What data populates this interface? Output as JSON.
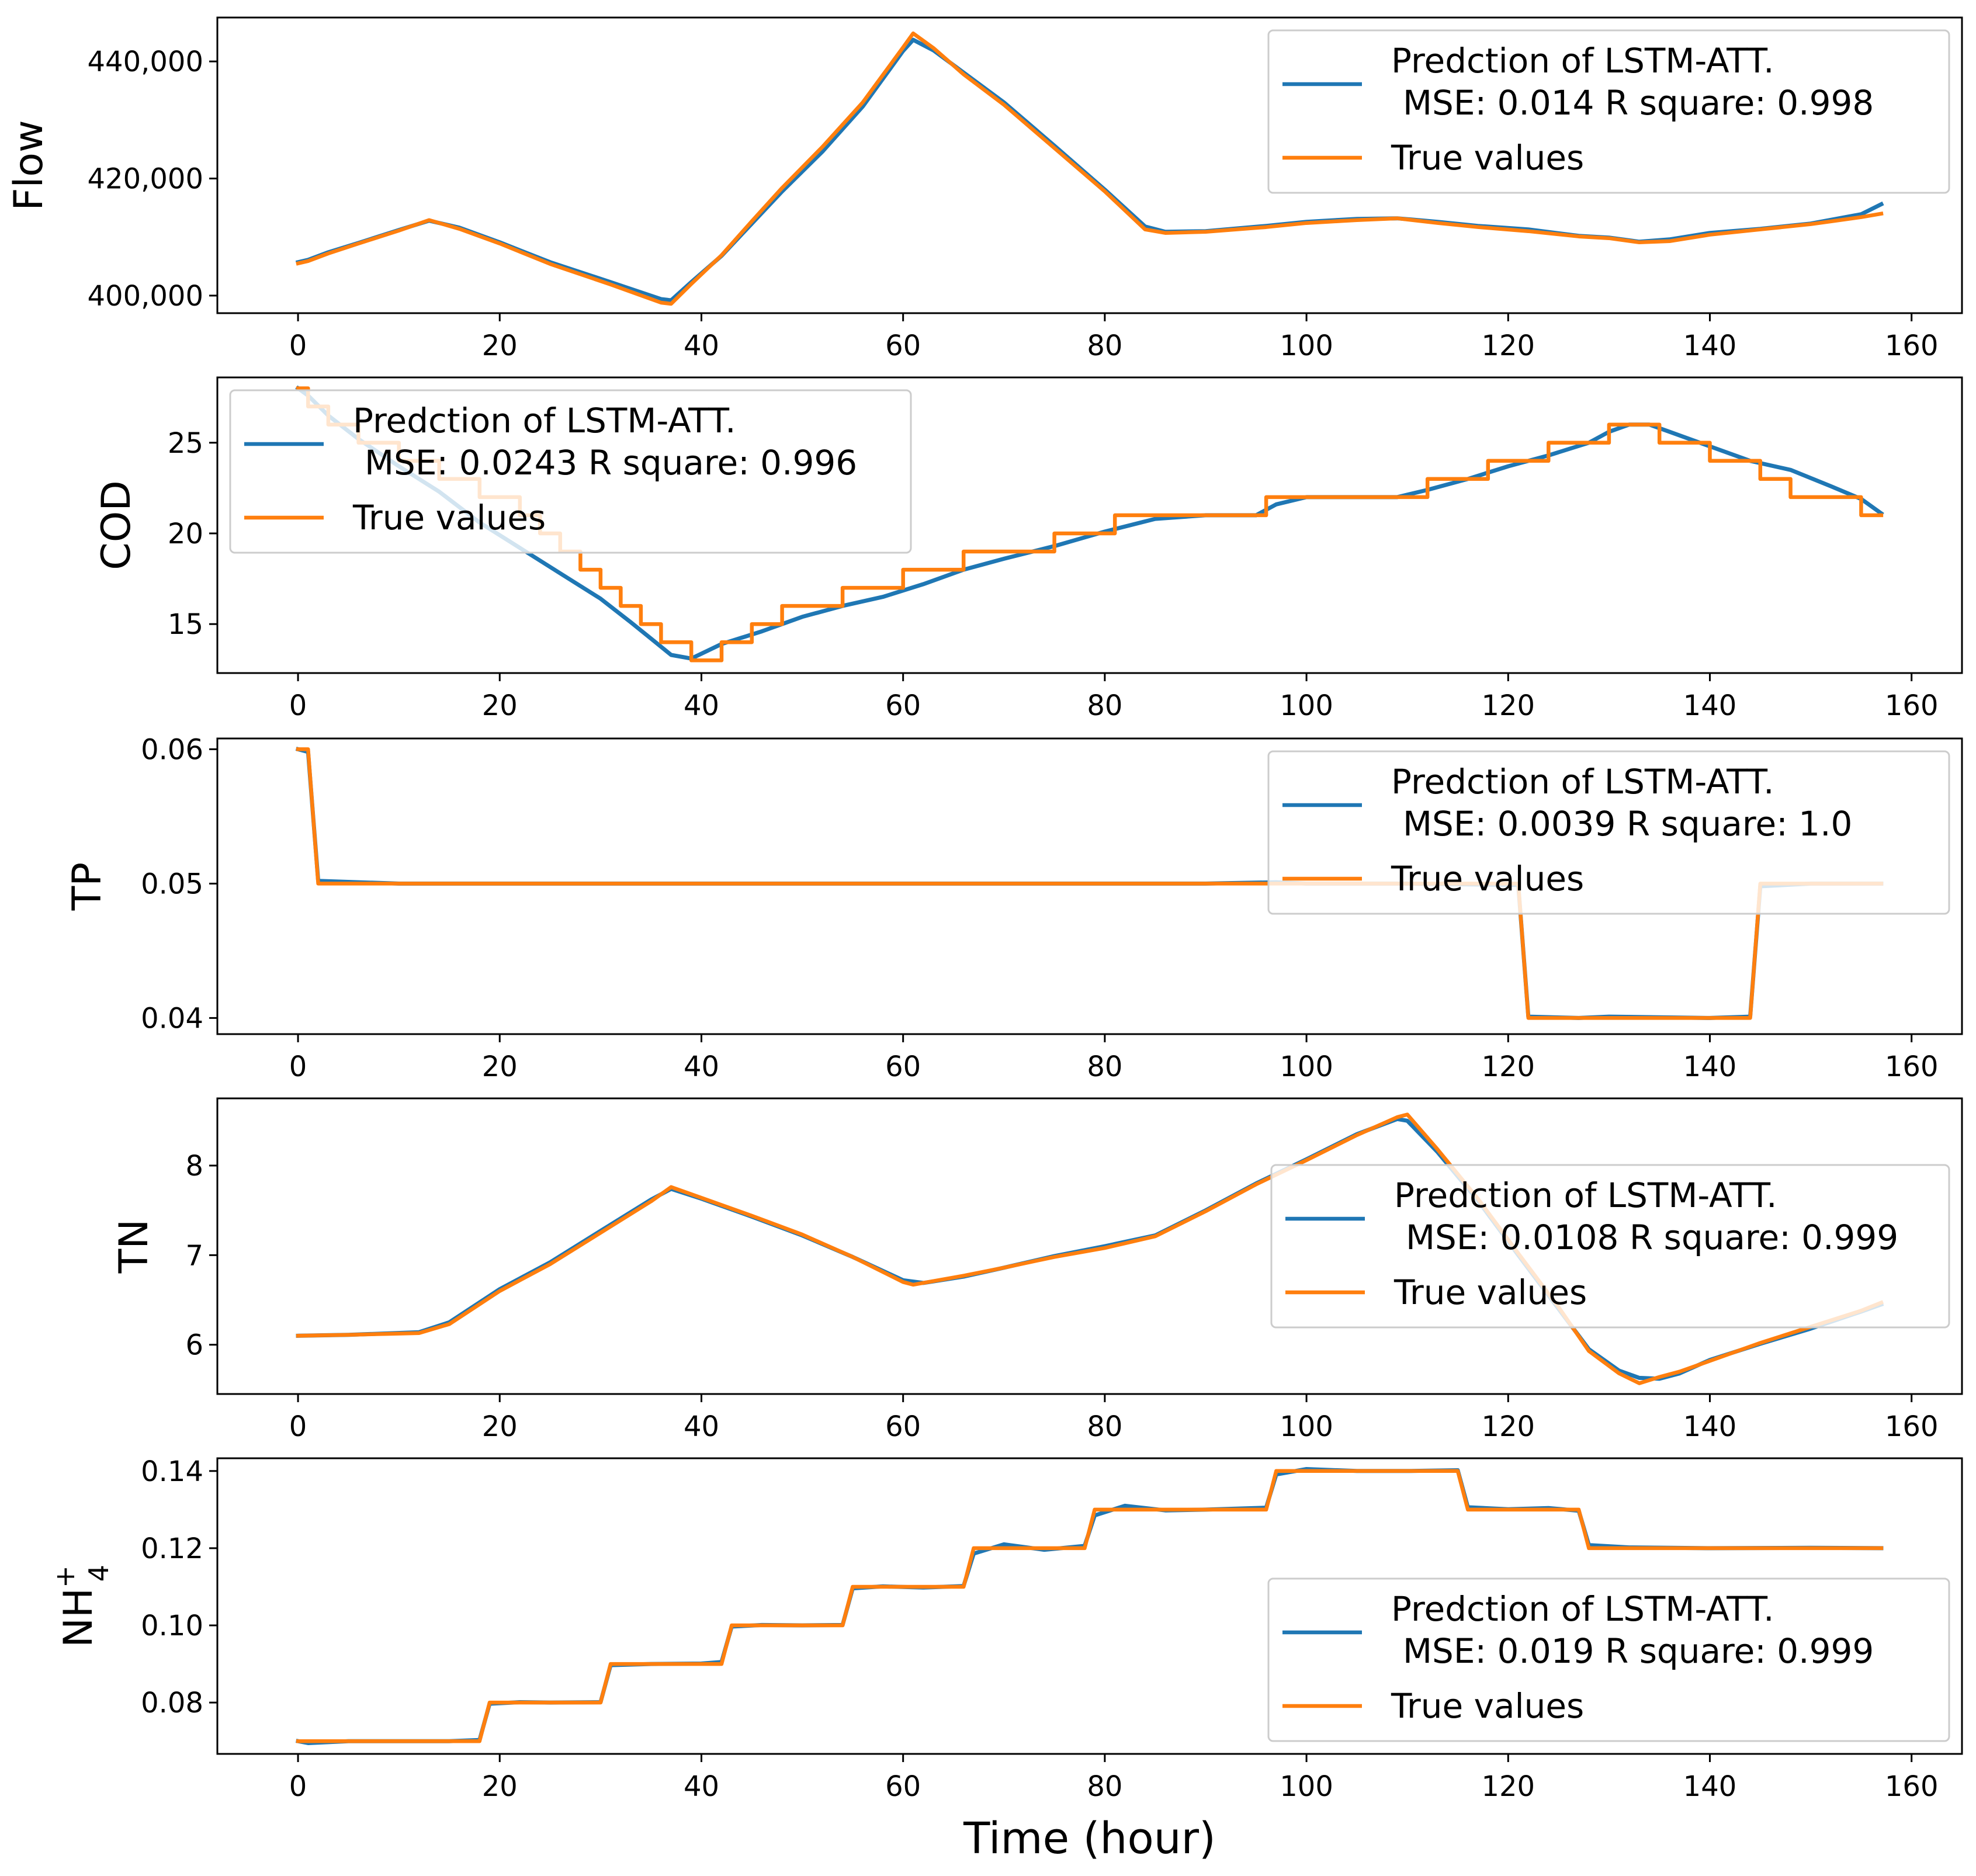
{
  "figure": {
    "xlabel": "Time (hour)"
  },
  "colors": {
    "prediction": "#1f77b4",
    "truth": "#ff7f0e"
  },
  "chart_data": [
    {
      "type": "line",
      "ylabel": "Flow",
      "xlim": [
        -8,
        165
      ],
      "ylim": [
        397000,
        447500
      ],
      "xticks": [
        0,
        20,
        40,
        60,
        80,
        100,
        120,
        140,
        160
      ],
      "xtick_labels": [
        "0",
        "20",
        "40",
        "60",
        "80",
        "100",
        "120",
        "140",
        "160"
      ],
      "yticks": [
        400000,
        420000,
        440000
      ],
      "ytick_labels": [
        "400,000",
        "420,000",
        "440,000"
      ],
      "legend": {
        "position": "upper-right",
        "prediction_line1": "Predction of LSTM-ATT.",
        "prediction_line2": "MSE: 0.014  R square: 0.998",
        "truth_label": "True values"
      },
      "series": [
        {
          "name": "Prediction",
          "x": [
            0,
            1,
            3,
            6,
            10,
            13,
            16,
            20,
            25,
            31,
            36,
            37,
            39,
            42,
            45,
            48,
            52,
            56,
            60,
            61,
            63,
            66,
            70,
            75,
            80,
            84,
            86,
            90,
            96,
            100,
            105,
            109,
            113,
            117,
            122,
            127,
            130,
            133,
            136,
            140,
            145,
            150,
            155,
            157
          ],
          "y": [
            405700,
            406100,
            407400,
            409000,
            411200,
            412800,
            411600,
            409100,
            405700,
            402300,
            399400,
            399200,
            402300,
            406800,
            412300,
            417800,
            424600,
            432300,
            441800,
            443700,
            441900,
            438100,
            433000,
            425600,
            418100,
            411800,
            410900,
            411000,
            411900,
            412600,
            413100,
            413200,
            412600,
            411900,
            411300,
            410200,
            409900,
            409200,
            409600,
            410700,
            411400,
            412300,
            413900,
            415600
          ]
        },
        {
          "name": "True values",
          "x": [
            0,
            1,
            3,
            6,
            10,
            13,
            16,
            20,
            25,
            31,
            36,
            37,
            39,
            42,
            45,
            48,
            52,
            56,
            60,
            61,
            63,
            66,
            70,
            75,
            80,
            84,
            86,
            90,
            96,
            100,
            105,
            109,
            113,
            117,
            122,
            127,
            130,
            133,
            136,
            140,
            145,
            150,
            155,
            157
          ],
          "y": [
            405500,
            405900,
            407200,
            408900,
            411100,
            412900,
            411400,
            408900,
            405400,
            401900,
            398800,
            398600,
            402000,
            406900,
            412700,
            418400,
            425400,
            433000,
            442400,
            444800,
            442300,
            437800,
            432600,
            425200,
            417800,
            411300,
            410700,
            410900,
            411700,
            412400,
            412900,
            413200,
            412400,
            411700,
            411000,
            410100,
            409800,
            409100,
            409300,
            410400,
            411300,
            412200,
            413400,
            414000
          ]
        }
      ]
    },
    {
      "type": "line",
      "ylabel": "COD",
      "xlim": [
        -8,
        165
      ],
      "ylim": [
        12.3,
        28.6
      ],
      "xticks": [
        0,
        20,
        40,
        60,
        80,
        100,
        120,
        140,
        160
      ],
      "xtick_labels": [
        "0",
        "20",
        "40",
        "60",
        "80",
        "100",
        "120",
        "140",
        "160"
      ],
      "yticks": [
        15,
        20,
        25
      ],
      "ytick_labels": [
        "15",
        "20",
        "25"
      ],
      "legend": {
        "position": "upper-left",
        "prediction_line1": "Predction of LSTM-ATT.",
        "prediction_line2": "MSE: 0.0243  R square: 0.996",
        "truth_label": "True values"
      },
      "series": [
        {
          "name": "Prediction",
          "x": [
            0,
            1,
            3,
            6,
            10,
            14,
            18,
            22,
            26,
            30,
            33,
            35,
            37,
            39,
            42,
            46,
            50,
            54,
            58,
            62,
            66,
            70,
            75,
            80,
            85,
            90,
            95,
            97,
            100,
            105,
            109,
            112,
            116,
            120,
            124,
            128,
            130,
            132,
            134,
            136,
            140,
            144,
            148,
            152,
            155,
            157
          ],
          "y": [
            28,
            27.6,
            26.5,
            25.2,
            23.7,
            22.3,
            20.6,
            19.2,
            17.8,
            16.4,
            15.1,
            14.2,
            13.3,
            13.1,
            13.9,
            14.6,
            15.4,
            16,
            16.5,
            17.2,
            18,
            18.6,
            19.3,
            20.1,
            20.8,
            21,
            21,
            21.6,
            22,
            22,
            22,
            22.4,
            23,
            23.7,
            24.3,
            25,
            25.6,
            26,
            26,
            25.6,
            24.8,
            24,
            23.5,
            22.6,
            21.9,
            21.1
          ]
        },
        {
          "name": "True values",
          "x": [
            0,
            1,
            1,
            3,
            3,
            6,
            6,
            10,
            10,
            14,
            14,
            18,
            18,
            22,
            22,
            24,
            24,
            26,
            26,
            28,
            28,
            30,
            30,
            32,
            32,
            34,
            34,
            36,
            36,
            39,
            39,
            42,
            42,
            45,
            45,
            48,
            48,
            51,
            51,
            54,
            54,
            57,
            57,
            60,
            60,
            63,
            63,
            66,
            66,
            69,
            69,
            72,
            72,
            75,
            75,
            78,
            78,
            81,
            81,
            96,
            96,
            109,
            109,
            112,
            112,
            115,
            115,
            118,
            118,
            121,
            121,
            124,
            124,
            127,
            127,
            130,
            130,
            135,
            135,
            137,
            137,
            140,
            140,
            145,
            145,
            148,
            148,
            152,
            152,
            155,
            155,
            157
          ],
          "y": [
            28,
            28,
            27,
            27,
            26,
            26,
            25,
            25,
            24,
            24,
            23,
            23,
            22,
            22,
            21,
            21,
            20,
            20,
            19,
            19,
            18,
            18,
            17,
            17,
            16,
            16,
            15,
            15,
            14,
            14,
            13,
            13,
            14,
            14,
            15,
            15,
            16,
            16,
            16,
            16,
            17,
            17,
            17,
            17,
            18,
            18,
            18,
            18,
            19,
            19,
            19,
            19,
            19,
            19,
            20,
            20,
            20,
            20,
            21,
            21,
            22,
            22,
            22,
            22,
            23,
            23,
            23,
            23,
            24,
            24,
            24,
            24,
            25,
            25,
            25,
            25,
            26,
            26,
            25,
            25,
            25,
            25,
            24,
            24,
            23,
            23,
            22,
            22,
            22,
            22,
            21,
            21
          ]
        }
      ]
    },
    {
      "type": "line",
      "ylabel": "TP",
      "xlim": [
        -8,
        165
      ],
      "ylim": [
        0.0388,
        0.0608
      ],
      "xticks": [
        0,
        20,
        40,
        60,
        80,
        100,
        120,
        140,
        160
      ],
      "xtick_labels": [
        "0",
        "20",
        "40",
        "60",
        "80",
        "100",
        "120",
        "140",
        "160"
      ],
      "yticks": [
        0.04,
        0.05,
        0.06
      ],
      "ytick_labels": [
        "0.04",
        "0.05",
        "0.06"
      ],
      "legend": {
        "position": "upper-right",
        "prediction_line1": "Predction of LSTM-ATT.",
        "prediction_line2": "MSE: 0.0039  R square: 1.0",
        "truth_label": "True values"
      },
      "series": [
        {
          "name": "Prediction",
          "x": [
            0,
            1,
            2,
            10,
            30,
            50,
            70,
            90,
            97,
            100,
            110,
            121,
            122,
            127,
            130,
            140,
            144,
            145,
            150,
            157
          ],
          "y": [
            0.06,
            0.0598,
            0.0502,
            0.05,
            0.05,
            0.05,
            0.05,
            0.05,
            0.0501,
            0.05,
            0.05,
            0.0499,
            0.0401,
            0.04,
            0.0401,
            0.04,
            0.0401,
            0.0498,
            0.05,
            0.05
          ]
        },
        {
          "name": "True values",
          "x": [
            0,
            1,
            2,
            121,
            122,
            144,
            145,
            157
          ],
          "y": [
            0.06,
            0.06,
            0.05,
            0.05,
            0.04,
            0.04,
            0.05,
            0.05
          ]
        }
      ]
    },
    {
      "type": "line",
      "ylabel": "TN",
      "xlim": [
        -8,
        165
      ],
      "ylim": [
        5.45,
        8.75
      ],
      "xticks": [
        0,
        20,
        40,
        60,
        80,
        100,
        120,
        140,
        160
      ],
      "xtick_labels": [
        "0",
        "20",
        "40",
        "60",
        "80",
        "100",
        "120",
        "140",
        "160"
      ],
      "yticks": [
        6,
        7,
        8
      ],
      "ytick_labels": [
        "6",
        "7",
        "8"
      ],
      "legend": {
        "position": "center-right",
        "prediction_line1": "Predction of LSTM-ATT.",
        "prediction_line2": "MSE: 0.0108  R square: 0.999",
        "truth_label": "True values"
      },
      "series": [
        {
          "name": "Prediction",
          "x": [
            0,
            5,
            12,
            15,
            20,
            25,
            30,
            35,
            37,
            40,
            45,
            50,
            55,
            60,
            62,
            66,
            70,
            75,
            80,
            85,
            90,
            95,
            100,
            105,
            109,
            110,
            113,
            117,
            121,
            125,
            128,
            131,
            133,
            135,
            137,
            140,
            145,
            150,
            155,
            157
          ],
          "y": [
            6.1,
            6.11,
            6.14,
            6.25,
            6.62,
            6.92,
            7.27,
            7.62,
            7.74,
            7.63,
            7.43,
            7.22,
            6.98,
            6.72,
            6.69,
            6.76,
            6.86,
            6.99,
            7.1,
            7.22,
            7.5,
            7.8,
            8.07,
            8.35,
            8.52,
            8.5,
            8.15,
            7.61,
            7,
            6.4,
            5.95,
            5.71,
            5.63,
            5.62,
            5.68,
            5.83,
            6.01,
            6.18,
            6.37,
            6.45
          ]
        },
        {
          "name": "True values",
          "x": [
            0,
            5,
            12,
            15,
            20,
            25,
            30,
            35,
            37,
            40,
            45,
            50,
            55,
            60,
            61,
            66,
            70,
            75,
            80,
            85,
            90,
            95,
            100,
            105,
            109,
            110,
            113,
            117,
            121,
            125,
            128,
            131,
            133,
            135,
            137,
            140,
            145,
            150,
            155,
            157
          ],
          "y": [
            6.1,
            6.11,
            6.13,
            6.23,
            6.6,
            6.9,
            7.25,
            7.6,
            7.76,
            7.64,
            7.44,
            7.23,
            6.98,
            6.7,
            6.67,
            6.77,
            6.86,
            6.98,
            7.08,
            7.21,
            7.49,
            7.79,
            8.06,
            8.34,
            8.54,
            8.57,
            8.18,
            7.63,
            7.02,
            6.42,
            5.93,
            5.68,
            5.57,
            5.64,
            5.7,
            5.82,
            6.02,
            6.2,
            6.38,
            6.47
          ]
        }
      ]
    },
    {
      "type": "line",
      "ylabel": "NH4+",
      "ylabel_base": "NH",
      "ylabel_sup": "+",
      "ylabel_sub": "4",
      "xlim": [
        -8,
        165
      ],
      "ylim": [
        0.0667,
        0.1433
      ],
      "xticks": [
        0,
        20,
        40,
        60,
        80,
        100,
        120,
        140,
        160
      ],
      "xtick_labels": [
        "0",
        "20",
        "40",
        "60",
        "80",
        "100",
        "120",
        "140",
        "160"
      ],
      "yticks": [
        0.08,
        0.1,
        0.12,
        0.14
      ],
      "ytick_labels": [
        "0.08",
        "0.10",
        "0.12",
        "0.14"
      ],
      "legend": {
        "position": "lower-right",
        "prediction_line1": "Predction of LSTM-ATT.",
        "prediction_line2": "MSE: 0.019  R square: 0.999",
        "truth_label": "True values"
      },
      "series": [
        {
          "name": "Prediction",
          "x": [
            0,
            1,
            5,
            10,
            15,
            18,
            19,
            22,
            25,
            30,
            31,
            35,
            40,
            42,
            43,
            46,
            50,
            54,
            55,
            58,
            62,
            66,
            67,
            70,
            74,
            78,
            79,
            82,
            86,
            90,
            96,
            97,
            100,
            105,
            110,
            115,
            116,
            120,
            124,
            127,
            128,
            132,
            140,
            150,
            157
          ],
          "y": [
            0.07,
            0.0695,
            0.07,
            0.07,
            0.07,
            0.0703,
            0.0797,
            0.0801,
            0.08,
            0.0801,
            0.0897,
            0.09,
            0.0901,
            0.0905,
            0.0997,
            0.1001,
            0.1,
            0.1001,
            0.1096,
            0.1101,
            0.1098,
            0.1102,
            0.1186,
            0.121,
            0.1196,
            0.1206,
            0.1285,
            0.131,
            0.1298,
            0.13,
            0.1305,
            0.1391,
            0.1405,
            0.14,
            0.14,
            0.1402,
            0.1306,
            0.1301,
            0.1304,
            0.1297,
            0.1208,
            0.1202,
            0.12,
            0.1201,
            0.12
          ]
        },
        {
          "name": "True values",
          "x": [
            0,
            18,
            19,
            30,
            31,
            42,
            43,
            54,
            55,
            66,
            67,
            78,
            79,
            96,
            97,
            115,
            116,
            127,
            128,
            157
          ],
          "y": [
            0.07,
            0.07,
            0.08,
            0.08,
            0.09,
            0.09,
            0.1,
            0.1,
            0.11,
            0.11,
            0.12,
            0.12,
            0.13,
            0.13,
            0.14,
            0.14,
            0.13,
            0.13,
            0.12,
            0.12
          ]
        }
      ]
    }
  ]
}
